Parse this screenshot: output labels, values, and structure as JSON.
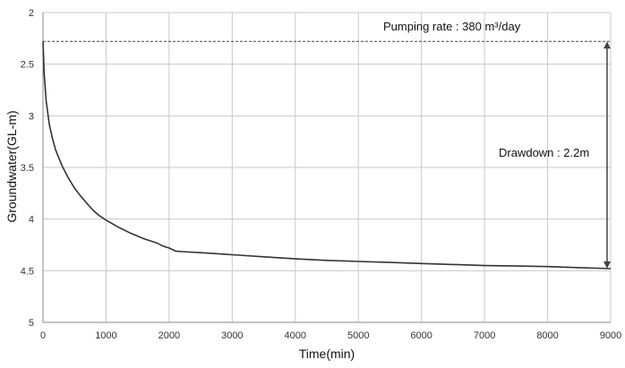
{
  "chart_data": {
    "type": "line",
    "xlabel": "Time(min)",
    "ylabel": "Groundwater(GL-m)",
    "xlim": [
      0,
      9000
    ],
    "ylim": [
      2,
      5
    ],
    "y_inverted": true,
    "grid": true,
    "x_ticks": [
      "0",
      "1000",
      "2000",
      "3000",
      "4000",
      "5000",
      "6000",
      "7000",
      "8000",
      "9000"
    ],
    "y_ticks": [
      "2",
      "2.5",
      "3",
      "3.5",
      "4",
      "4.5",
      "5"
    ],
    "series": [
      {
        "color": "#333333",
        "x": [
          0,
          20,
          50,
          100,
          150,
          200,
          300,
          400,
          500,
          600,
          700,
          800,
          900,
          1000,
          1200,
          1400,
          1600,
          1800,
          1900,
          2000,
          2100,
          2200,
          2500,
          3000,
          3500,
          4000,
          4500,
          5000,
          5500,
          6000,
          6500,
          7000,
          7500,
          8000,
          8500,
          9000
        ],
        "y": [
          2.28,
          2.6,
          2.85,
          3.08,
          3.22,
          3.33,
          3.48,
          3.6,
          3.7,
          3.78,
          3.85,
          3.92,
          3.97,
          4.01,
          4.08,
          4.14,
          4.19,
          4.23,
          4.26,
          4.28,
          4.31,
          4.315,
          4.325,
          4.345,
          4.365,
          4.385,
          4.4,
          4.41,
          4.42,
          4.43,
          4.44,
          4.45,
          4.455,
          4.46,
          4.47,
          4.48
        ]
      }
    ],
    "annotations": {
      "pumping_rate": "Pumping rate : 380 m³/day",
      "drawdown": "Drawdown : 2.2m",
      "reference_level": 2.28,
      "final_level": 4.48
    }
  }
}
